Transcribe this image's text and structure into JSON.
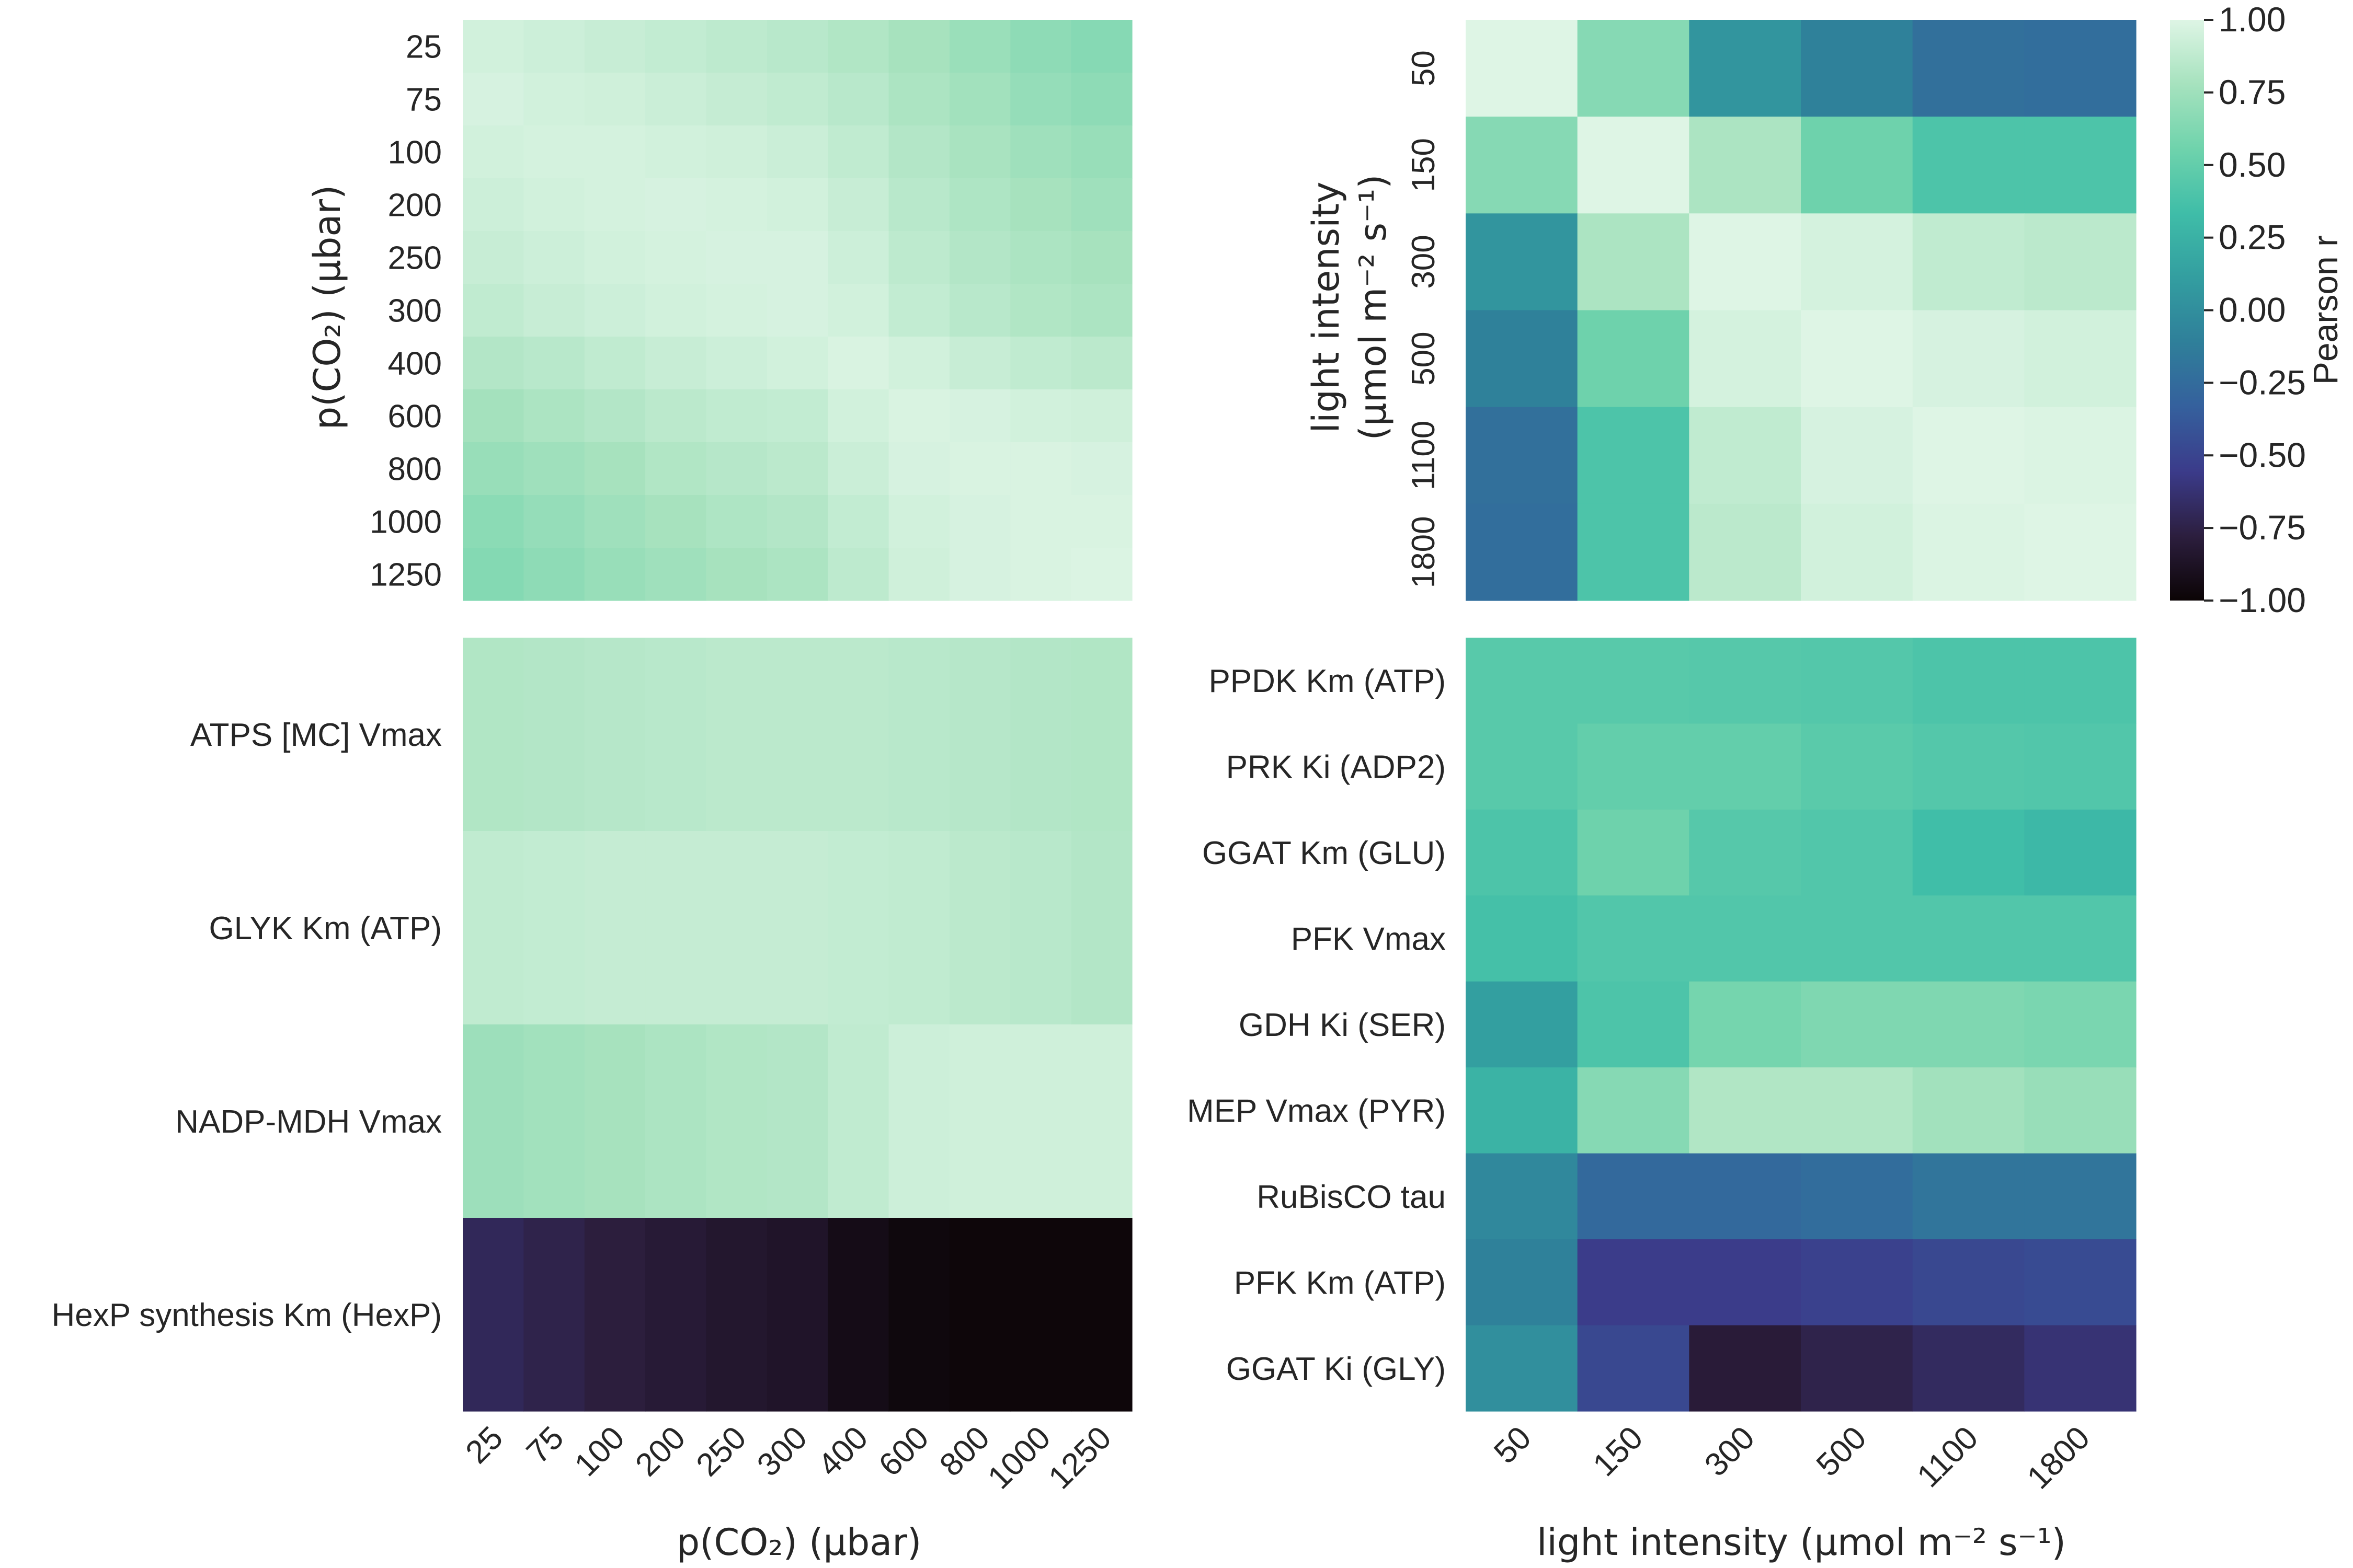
{
  "colormap": {
    "name": "mako",
    "stops": [
      "#0b0405",
      "#2c1e3e",
      "#3b3b8a",
      "#35609d",
      "#2f7f9a",
      "#339ea0",
      "#3fbda8",
      "#6fd3ac",
      "#a6e2be",
      "#def5e5"
    ]
  },
  "colorbar": {
    "label": "Pearson r",
    "range": [
      -1,
      1
    ],
    "ticks": [
      "−1.00",
      "−0.75",
      "−0.50",
      "−0.25",
      "0.00",
      "0.25",
      "0.50",
      "0.75",
      "1.00"
    ],
    "tick_values": [
      -1.0,
      -0.75,
      -0.5,
      -0.25,
      0.0,
      0.25,
      0.5,
      0.75,
      1.0
    ]
  },
  "chart_data": [
    {
      "type": "heatmap",
      "id": "co2-corr",
      "x_labels": [
        "25",
        "75",
        "100",
        "200",
        "250",
        "300",
        "400",
        "600",
        "800",
        "1000",
        "1250"
      ],
      "y_labels": [
        "25",
        "75",
        "100",
        "200",
        "250",
        "300",
        "400",
        "600",
        "800",
        "1000",
        "1250"
      ],
      "ylabel": "p(CO₂) (μbar)",
      "values": [
        [
          0.95,
          0.93,
          0.91,
          0.89,
          0.87,
          0.85,
          0.82,
          0.78,
          0.73,
          0.68,
          0.65
        ],
        [
          0.97,
          0.95,
          0.94,
          0.92,
          0.9,
          0.88,
          0.85,
          0.8,
          0.76,
          0.71,
          0.68
        ],
        [
          0.95,
          0.96,
          0.96,
          0.95,
          0.94,
          0.92,
          0.88,
          0.83,
          0.79,
          0.75,
          0.72
        ],
        [
          0.93,
          0.95,
          0.96,
          0.97,
          0.96,
          0.95,
          0.91,
          0.85,
          0.81,
          0.78,
          0.75
        ],
        [
          0.91,
          0.93,
          0.95,
          0.96,
          0.97,
          0.97,
          0.93,
          0.87,
          0.83,
          0.8,
          0.78
        ],
        [
          0.88,
          0.91,
          0.93,
          0.95,
          0.96,
          0.97,
          0.95,
          0.89,
          0.85,
          0.82,
          0.8
        ],
        [
          0.83,
          0.85,
          0.88,
          0.91,
          0.93,
          0.95,
          0.98,
          0.95,
          0.91,
          0.88,
          0.86
        ],
        [
          0.77,
          0.8,
          0.83,
          0.86,
          0.88,
          0.89,
          0.95,
          0.98,
          0.97,
          0.95,
          0.94
        ],
        [
          0.72,
          0.75,
          0.78,
          0.82,
          0.84,
          0.86,
          0.92,
          0.97,
          0.98,
          0.98,
          0.97
        ],
        [
          0.67,
          0.71,
          0.75,
          0.78,
          0.81,
          0.83,
          0.89,
          0.95,
          0.97,
          0.98,
          0.98
        ],
        [
          0.64,
          0.68,
          0.72,
          0.75,
          0.78,
          0.8,
          0.87,
          0.94,
          0.97,
          0.98,
          0.99
        ]
      ]
    },
    {
      "type": "heatmap",
      "id": "light-corr",
      "x_labels": [
        "50",
        "150",
        "300",
        "500",
        "1100",
        "1800"
      ],
      "y_labels": [
        "50",
        "150",
        "300",
        "500",
        "1100",
        "1800"
      ],
      "ylabel_line1": "light intensity",
      "ylabel_line2": "(μmol m⁻² s⁻¹)",
      "values": [
        [
          1.0,
          0.65,
          0.05,
          -0.1,
          -0.22,
          -0.23
        ],
        [
          0.65,
          1.0,
          0.8,
          0.55,
          0.4,
          0.4
        ],
        [
          0.05,
          0.8,
          1.0,
          0.96,
          0.88,
          0.86
        ],
        [
          -0.1,
          0.55,
          0.96,
          1.0,
          0.97,
          0.95
        ],
        [
          -0.22,
          0.4,
          0.88,
          0.97,
          1.0,
          0.99
        ],
        [
          -0.23,
          0.4,
          0.86,
          0.95,
          0.99,
          1.0
        ]
      ]
    },
    {
      "type": "heatmap",
      "id": "co2-params",
      "x_labels": [
        "25",
        "75",
        "100",
        "200",
        "250",
        "300",
        "400",
        "600",
        "800",
        "1000",
        "1250"
      ],
      "y_labels": [
        "ATPS [MC] Vmax",
        "GLYK Km (ATP)",
        "NADP-MDH Vmax",
        "HexP synthesis Km (HexP)"
      ],
      "xlabel": "p(CO₂) (μbar)",
      "values": [
        [
          0.82,
          0.83,
          0.84,
          0.85,
          0.86,
          0.86,
          0.86,
          0.85,
          0.84,
          0.83,
          0.82
        ],
        [
          0.88,
          0.89,
          0.9,
          0.9,
          0.9,
          0.9,
          0.89,
          0.88,
          0.86,
          0.85,
          0.83
        ],
        [
          0.74,
          0.76,
          0.78,
          0.8,
          0.82,
          0.83,
          0.88,
          0.93,
          0.94,
          0.94,
          0.94
        ],
        [
          -0.7,
          -0.74,
          -0.78,
          -0.81,
          -0.84,
          -0.86,
          -0.93,
          -0.97,
          -0.98,
          -0.98,
          -0.98
        ]
      ]
    },
    {
      "type": "heatmap",
      "id": "light-params",
      "x_labels": [
        "50",
        "150",
        "300",
        "500",
        "1100",
        "1800"
      ],
      "y_labels": [
        "PPDK Km (ATP)",
        "PRK Ki (ADP2)",
        "GGAT Km (GLU)",
        "PFK Vmax",
        "GDH Ki (SER)",
        "MEP Vmax (PYR)",
        "RuBisCO tau",
        "PFK Km (ATP)",
        "GGAT Ki (GLY)"
      ],
      "xlabel": "light intensity (μmol m⁻² s⁻¹)",
      "values": [
        [
          0.45,
          0.45,
          0.44,
          0.43,
          0.4,
          0.4
        ],
        [
          0.45,
          0.5,
          0.5,
          0.46,
          0.43,
          0.42
        ],
        [
          0.4,
          0.55,
          0.44,
          0.42,
          0.34,
          0.3
        ],
        [
          0.36,
          0.42,
          0.42,
          0.42,
          0.42,
          0.42
        ],
        [
          0.12,
          0.4,
          0.58,
          0.62,
          0.62,
          0.6
        ],
        [
          0.26,
          0.65,
          0.82,
          0.82,
          0.76,
          0.72
        ],
        [
          -0.05,
          -0.27,
          -0.27,
          -0.24,
          -0.18,
          -0.18
        ],
        [
          -0.1,
          -0.55,
          -0.55,
          -0.52,
          -0.48,
          -0.46
        ],
        [
          0.0,
          -0.48,
          -0.8,
          -0.74,
          -0.68,
          -0.62
        ]
      ]
    }
  ]
}
